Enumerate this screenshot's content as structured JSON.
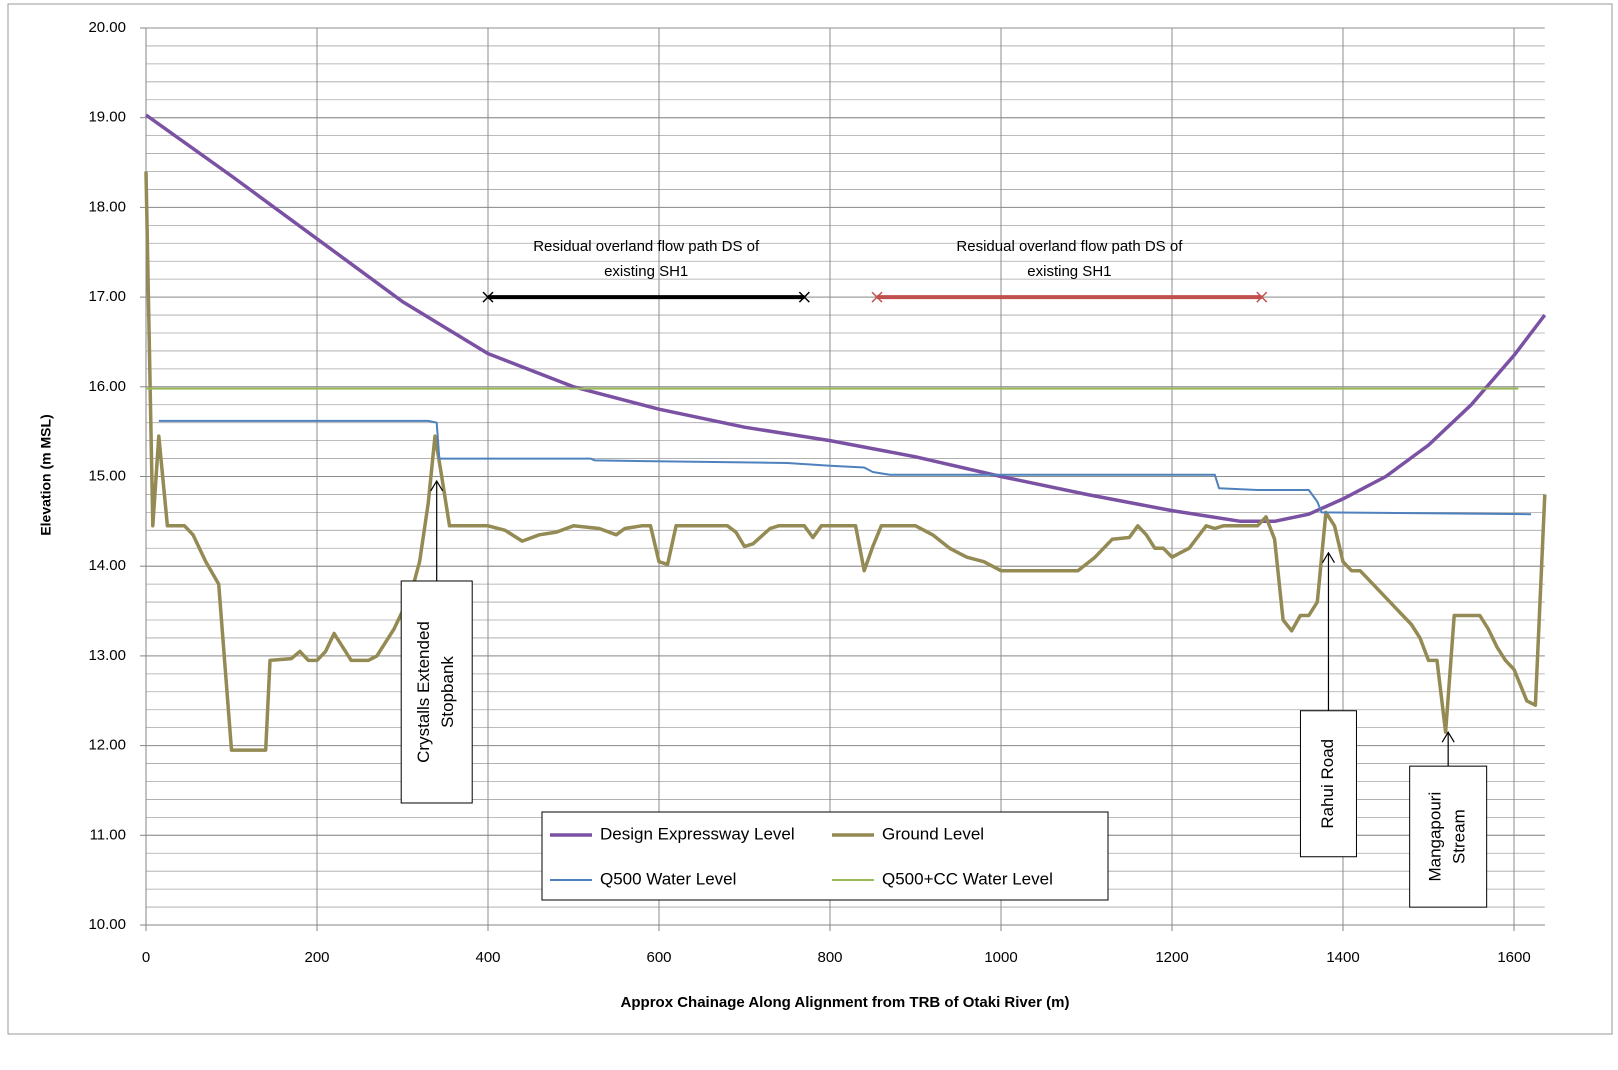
{
  "chart_data": {
    "type": "line",
    "xlabel": "Approx Chainage  Along Alignment from TRB of Otaki River (m)",
    "ylabel": "Elevation (m MSL)",
    "xlim": [
      0,
      1636
    ],
    "ylim": [
      10,
      20
    ],
    "xticks": [
      0,
      200,
      400,
      600,
      800,
      1000,
      1200,
      1400,
      1600
    ],
    "yticks": [
      {
        "value": 10,
        "label": "10.00"
      },
      {
        "value": 11,
        "label": "11.00"
      },
      {
        "value": 12,
        "label": "12.00"
      },
      {
        "value": 13,
        "label": "13.00"
      },
      {
        "value": 14,
        "label": "14.00"
      },
      {
        "value": 15,
        "label": "15.00"
      },
      {
        "value": 16,
        "label": "16.00"
      },
      {
        "value": 17,
        "label": "17.00"
      },
      {
        "value": 18,
        "label": "18.00"
      },
      {
        "value": 19,
        "label": "19.00"
      },
      {
        "value": 20,
        "label": "20.00"
      }
    ],
    "grid": true,
    "minor_grid_step": 0.2,
    "legend": "bottom",
    "series": [
      {
        "name": "Design Expressway  Level",
        "color": "#7b52a3",
        "x": [
          0,
          100,
          200,
          300,
          400,
          500,
          600,
          700,
          800,
          900,
          1000,
          1100,
          1200,
          1280,
          1320,
          1360,
          1400,
          1450,
          1500,
          1550,
          1600,
          1636
        ],
        "values": [
          19.03,
          18.35,
          17.65,
          16.95,
          16.37,
          16.0,
          15.75,
          15.55,
          15.4,
          15.22,
          15.0,
          14.8,
          14.62,
          14.5,
          14.5,
          14.58,
          14.75,
          15.0,
          15.35,
          15.8,
          16.35,
          16.8
        ]
      },
      {
        "name": "Ground Level",
        "color": "#948a54",
        "x": [
          0,
          8,
          15,
          25,
          45,
          55,
          70,
          85,
          100,
          140,
          145,
          170,
          180,
          190,
          200,
          210,
          220,
          240,
          260,
          270,
          290,
          310,
          320,
          330,
          338,
          345,
          355,
          400,
          420,
          440,
          460,
          480,
          500,
          530,
          550,
          560,
          580,
          590,
          600,
          610,
          620,
          680,
          690,
          700,
          710,
          730,
          740,
          770,
          780,
          790,
          830,
          840,
          850,
          860,
          900,
          920,
          940,
          960,
          980,
          1000,
          1090,
          1110,
          1130,
          1150,
          1160,
          1170,
          1180,
          1190,
          1200,
          1210,
          1220,
          1240,
          1250,
          1260,
          1300,
          1310,
          1320,
          1330,
          1340,
          1350,
          1360,
          1370,
          1380,
          1390,
          1400,
          1410,
          1420,
          1440,
          1460,
          1480,
          1490,
          1500,
          1510,
          1520,
          1530,
          1560,
          1570,
          1580,
          1590,
          1600,
          1615,
          1625,
          1636
        ],
        "values": [
          18.4,
          14.45,
          15.45,
          14.45,
          14.45,
          14.35,
          14.05,
          13.8,
          11.95,
          11.95,
          12.95,
          12.97,
          13.05,
          12.95,
          12.95,
          13.05,
          13.25,
          12.95,
          12.95,
          13.0,
          13.3,
          13.7,
          14.05,
          14.7,
          15.45,
          15.05,
          14.45,
          14.45,
          14.4,
          14.28,
          14.35,
          14.38,
          14.45,
          14.42,
          14.35,
          14.42,
          14.45,
          14.45,
          14.05,
          14.02,
          14.45,
          14.45,
          14.38,
          14.22,
          14.25,
          14.42,
          14.45,
          14.45,
          14.32,
          14.45,
          14.45,
          13.95,
          14.22,
          14.45,
          14.45,
          14.35,
          14.2,
          14.1,
          14.05,
          13.95,
          13.95,
          14.1,
          14.3,
          14.32,
          14.45,
          14.35,
          14.2,
          14.2,
          14.1,
          14.15,
          14.2,
          14.45,
          14.42,
          14.45,
          14.45,
          14.55,
          14.3,
          13.4,
          13.28,
          13.45,
          13.45,
          13.6,
          14.6,
          14.45,
          14.05,
          13.95,
          13.95,
          13.75,
          13.55,
          13.35,
          13.2,
          12.95,
          12.95,
          12.15,
          13.45,
          13.45,
          13.3,
          13.1,
          12.95,
          12.85,
          12.5,
          12.45,
          14.8
        ]
      },
      {
        "name": "Q500 Water Level",
        "color": "#4f81bd",
        "x": [
          15,
          330,
          340,
          343,
          520,
          525,
          750,
          800,
          840,
          850,
          870,
          1250,
          1255,
          1300,
          1360,
          1370,
          1375,
          1620
        ],
        "values": [
          15.62,
          15.62,
          15.6,
          15.2,
          15.2,
          15.18,
          15.15,
          15.12,
          15.1,
          15.05,
          15.02,
          15.02,
          14.87,
          14.85,
          14.85,
          14.72,
          14.6,
          14.58
        ]
      },
      {
        "name": "Q500+CC Water Level",
        "color": "#9bbb59",
        "x": [
          0,
          1605
        ],
        "values": [
          15.98,
          15.98
        ]
      }
    ],
    "ranges": [
      {
        "lines": [
          "Residual overland flow path  DS of",
          "existing SH1"
        ],
        "x": [
          400,
          770
        ],
        "y": 17,
        "color": "#000000"
      },
      {
        "lines": [
          "Residual overland flow path DS of",
          "existing SH1"
        ],
        "x": [
          855,
          1305
        ],
        "y": 17,
        "color": "#c0504d"
      }
    ],
    "callouts": [
      {
        "lines": [
          "Crystalls Extended",
          "Stopbank"
        ],
        "x": 340,
        "y": 14.95
      },
      {
        "lines": [
          "Rahui Road"
        ],
        "x": 1383,
        "y": 14.15
      },
      {
        "lines": [
          "Mangapouri",
          "Stream"
        ],
        "x": 1523,
        "y": 12.15
      }
    ]
  }
}
